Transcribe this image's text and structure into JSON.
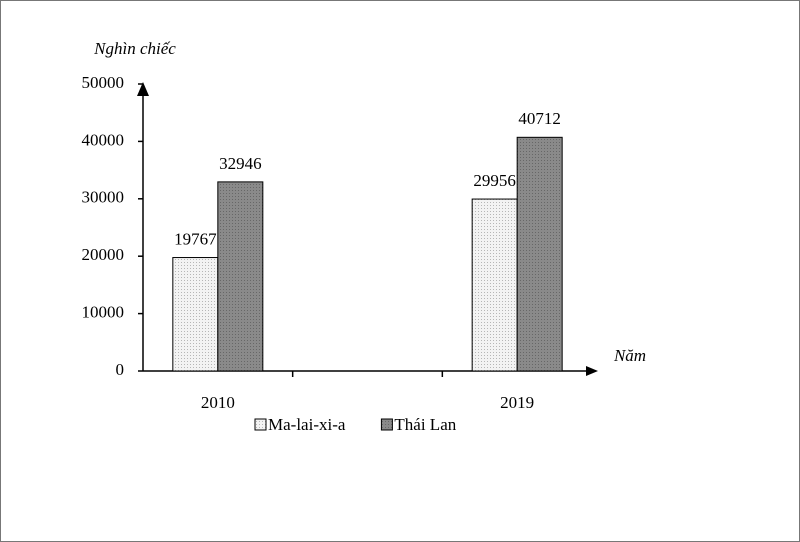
{
  "chart_data": {
    "type": "bar",
    "y_label": "Nghìn chiếc",
    "x_label": "Năm",
    "categories": [
      "2010",
      "2019"
    ],
    "series": [
      {
        "name": "Ma-lai-xi-a",
        "color": "#f3f3f3",
        "values": [
          19767,
          29956
        ]
      },
      {
        "name": "Thái Lan",
        "color": "#8a8a8a",
        "values": [
          32946,
          40712
        ]
      }
    ],
    "ylim": [
      0,
      50000
    ],
    "yticks": [
      0,
      10000,
      20000,
      30000,
      40000,
      50000
    ],
    "legend": "bottom"
  }
}
